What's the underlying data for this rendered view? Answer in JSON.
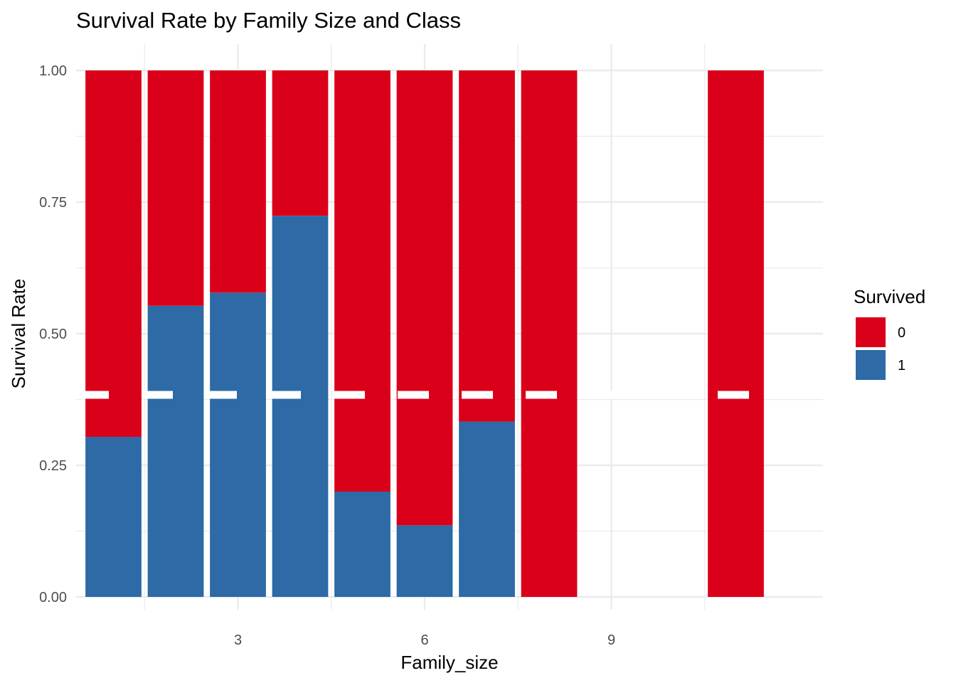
{
  "chart_data": {
    "type": "bar",
    "stacked": true,
    "title": "Survival Rate by Family Size and Class",
    "xlabel": "Family_size",
    "ylabel": "Survival Rate",
    "categories": [
      1,
      2,
      3,
      4,
      5,
      6,
      7,
      8,
      11
    ],
    "x_ticks": [
      "3",
      "6",
      "9"
    ],
    "x_tick_values": [
      3,
      6,
      9
    ],
    "y_ticks": [
      "0.00",
      "0.25",
      "0.50",
      "0.75",
      "1.00"
    ],
    "y_tick_values": [
      0,
      0.25,
      0.5,
      0.75,
      1.0
    ],
    "xlim": [
      0.4,
      12.4
    ],
    "ylim": [
      0,
      1.0
    ],
    "grid": true,
    "reference_line": {
      "y": 0.3838,
      "style": "dashed",
      "color": "#ffffff"
    },
    "series": [
      {
        "name": "0",
        "color": "#da001a",
        "values": [
          0.696,
          0.447,
          0.422,
          0.276,
          0.8,
          0.864,
          0.667,
          1.0,
          1.0
        ]
      },
      {
        "name": "1",
        "color": "#2d6aa6",
        "values": [
          0.304,
          0.553,
          0.578,
          0.724,
          0.2,
          0.136,
          0.333,
          0.0,
          0.0
        ]
      }
    ],
    "legend": {
      "title": "Survived",
      "position": "right"
    }
  }
}
